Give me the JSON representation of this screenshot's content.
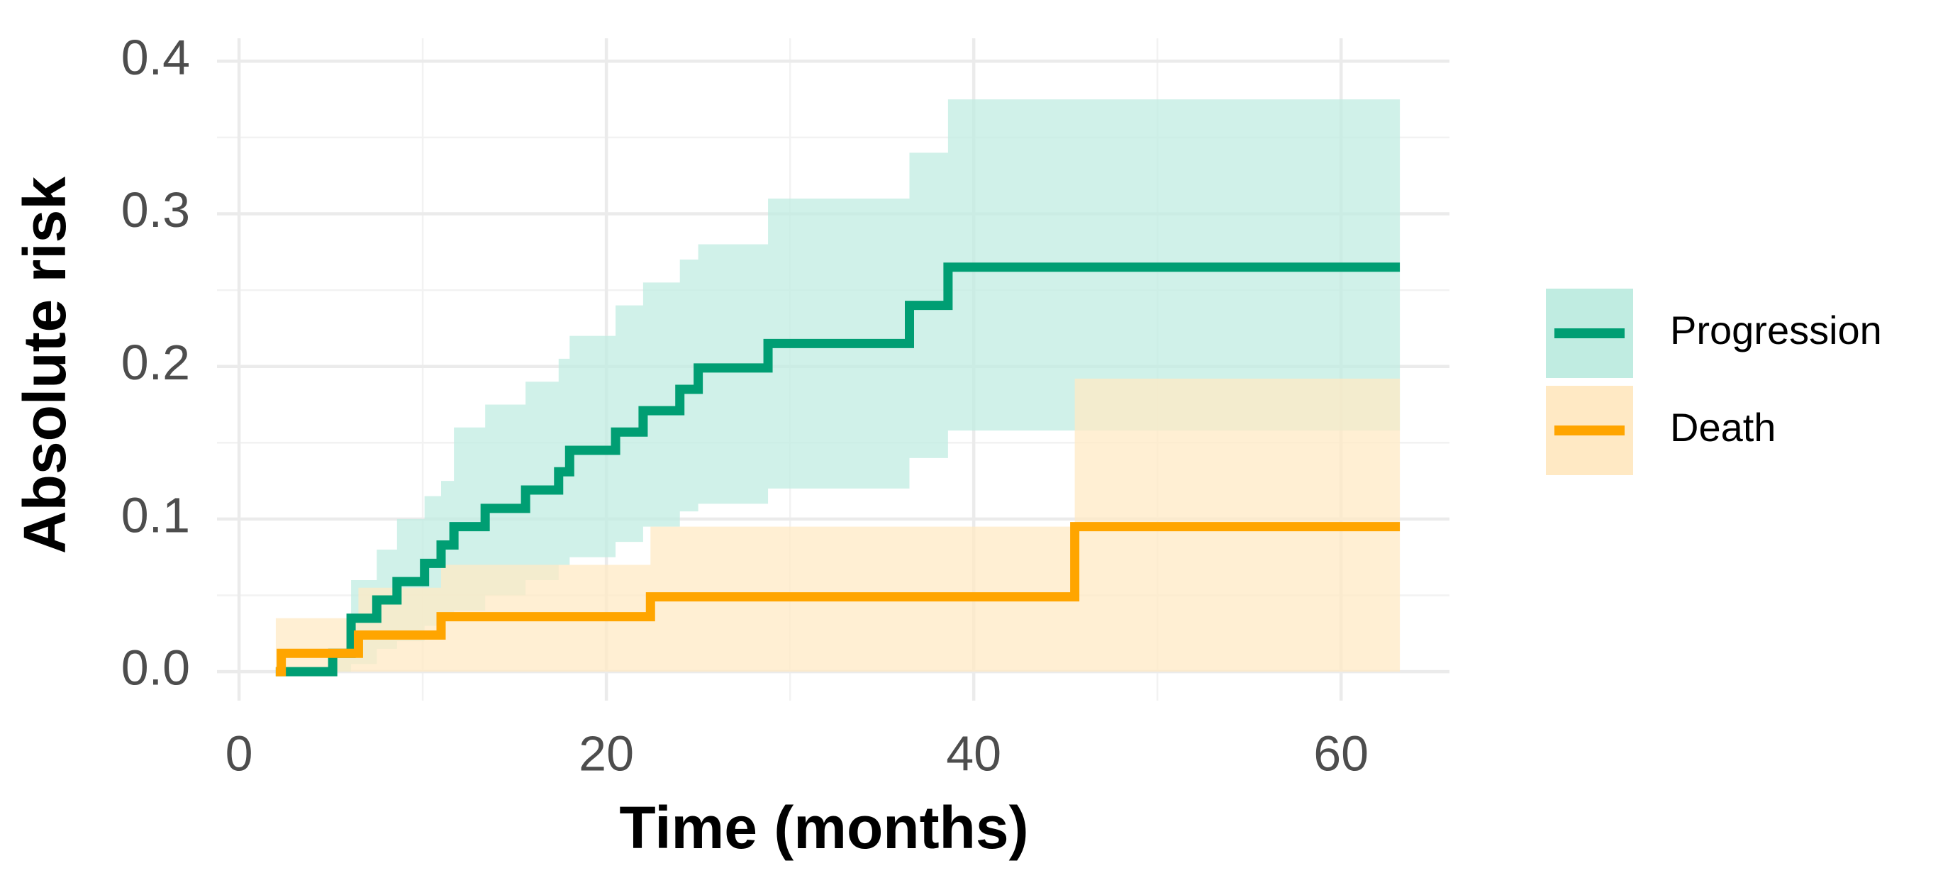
{
  "chart_data": {
    "type": "step",
    "xlabel": "Time (months)",
    "ylabel": "Absolute risk",
    "xlim": [
      -1.2,
      65.9
    ],
    "ylim": [
      -0.019,
      0.415
    ],
    "xticks": [
      0,
      20,
      40,
      60
    ],
    "yticks": [
      {
        "value": 0,
        "label": "0.0"
      },
      {
        "value": 0.1,
        "label": "0.1"
      },
      {
        "value": 0.2,
        "label": "0.2"
      },
      {
        "value": 0.3,
        "label": "0.3"
      },
      {
        "value": 0.4,
        "label": "0.4"
      }
    ],
    "xminor": [
      10,
      30,
      50
    ],
    "yminor": [
      0.05,
      0.15,
      0.25,
      0.35
    ],
    "grid": true,
    "legend": "right",
    "series": [
      {
        "name": "Progression",
        "color": "#009e73",
        "band_color": "#c0ece1",
        "x": [
          2,
          5.1,
          6.1,
          7.5,
          8.6,
          10.1,
          11,
          11.7,
          13.4,
          15.6,
          17.4,
          18,
          20.5,
          22,
          24,
          25,
          28.8,
          36.5,
          38.6,
          63.2
        ],
        "values": [
          0,
          0.012,
          0.035,
          0.047,
          0.059,
          0.071,
          0.083,
          0.095,
          0.107,
          0.119,
          0.131,
          0.145,
          0.157,
          0.171,
          0.185,
          0.199,
          0.215,
          0.24,
          0.265,
          0.265
        ],
        "lower": [
          0,
          0,
          0.005,
          0.015,
          0.02,
          0.03,
          0.035,
          0.04,
          0.05,
          0.06,
          0.07,
          0.075,
          0.085,
          0.095,
          0.105,
          0.11,
          0.12,
          0.14,
          0.158,
          0.158
        ],
        "upper": [
          0,
          0.01,
          0.06,
          0.08,
          0.1,
          0.115,
          0.125,
          0.16,
          0.175,
          0.19,
          0.205,
          0.22,
          0.24,
          0.255,
          0.27,
          0.28,
          0.31,
          0.34,
          0.375,
          0.375
        ]
      },
      {
        "name": "Death",
        "color": "#ffa500",
        "band_color": "#ffe9c4",
        "x": [
          2,
          2.3,
          6.5,
          11,
          22.4,
          45.5,
          63.2
        ],
        "values": [
          0,
          0.012,
          0.024,
          0.036,
          0.049,
          0.095,
          0.095
        ],
        "lower": [
          0,
          0,
          0,
          0,
          0,
          0,
          0
        ],
        "upper": [
          0.035,
          0.035,
          0.055,
          0.07,
          0.095,
          0.192,
          0.192
        ]
      }
    ]
  }
}
